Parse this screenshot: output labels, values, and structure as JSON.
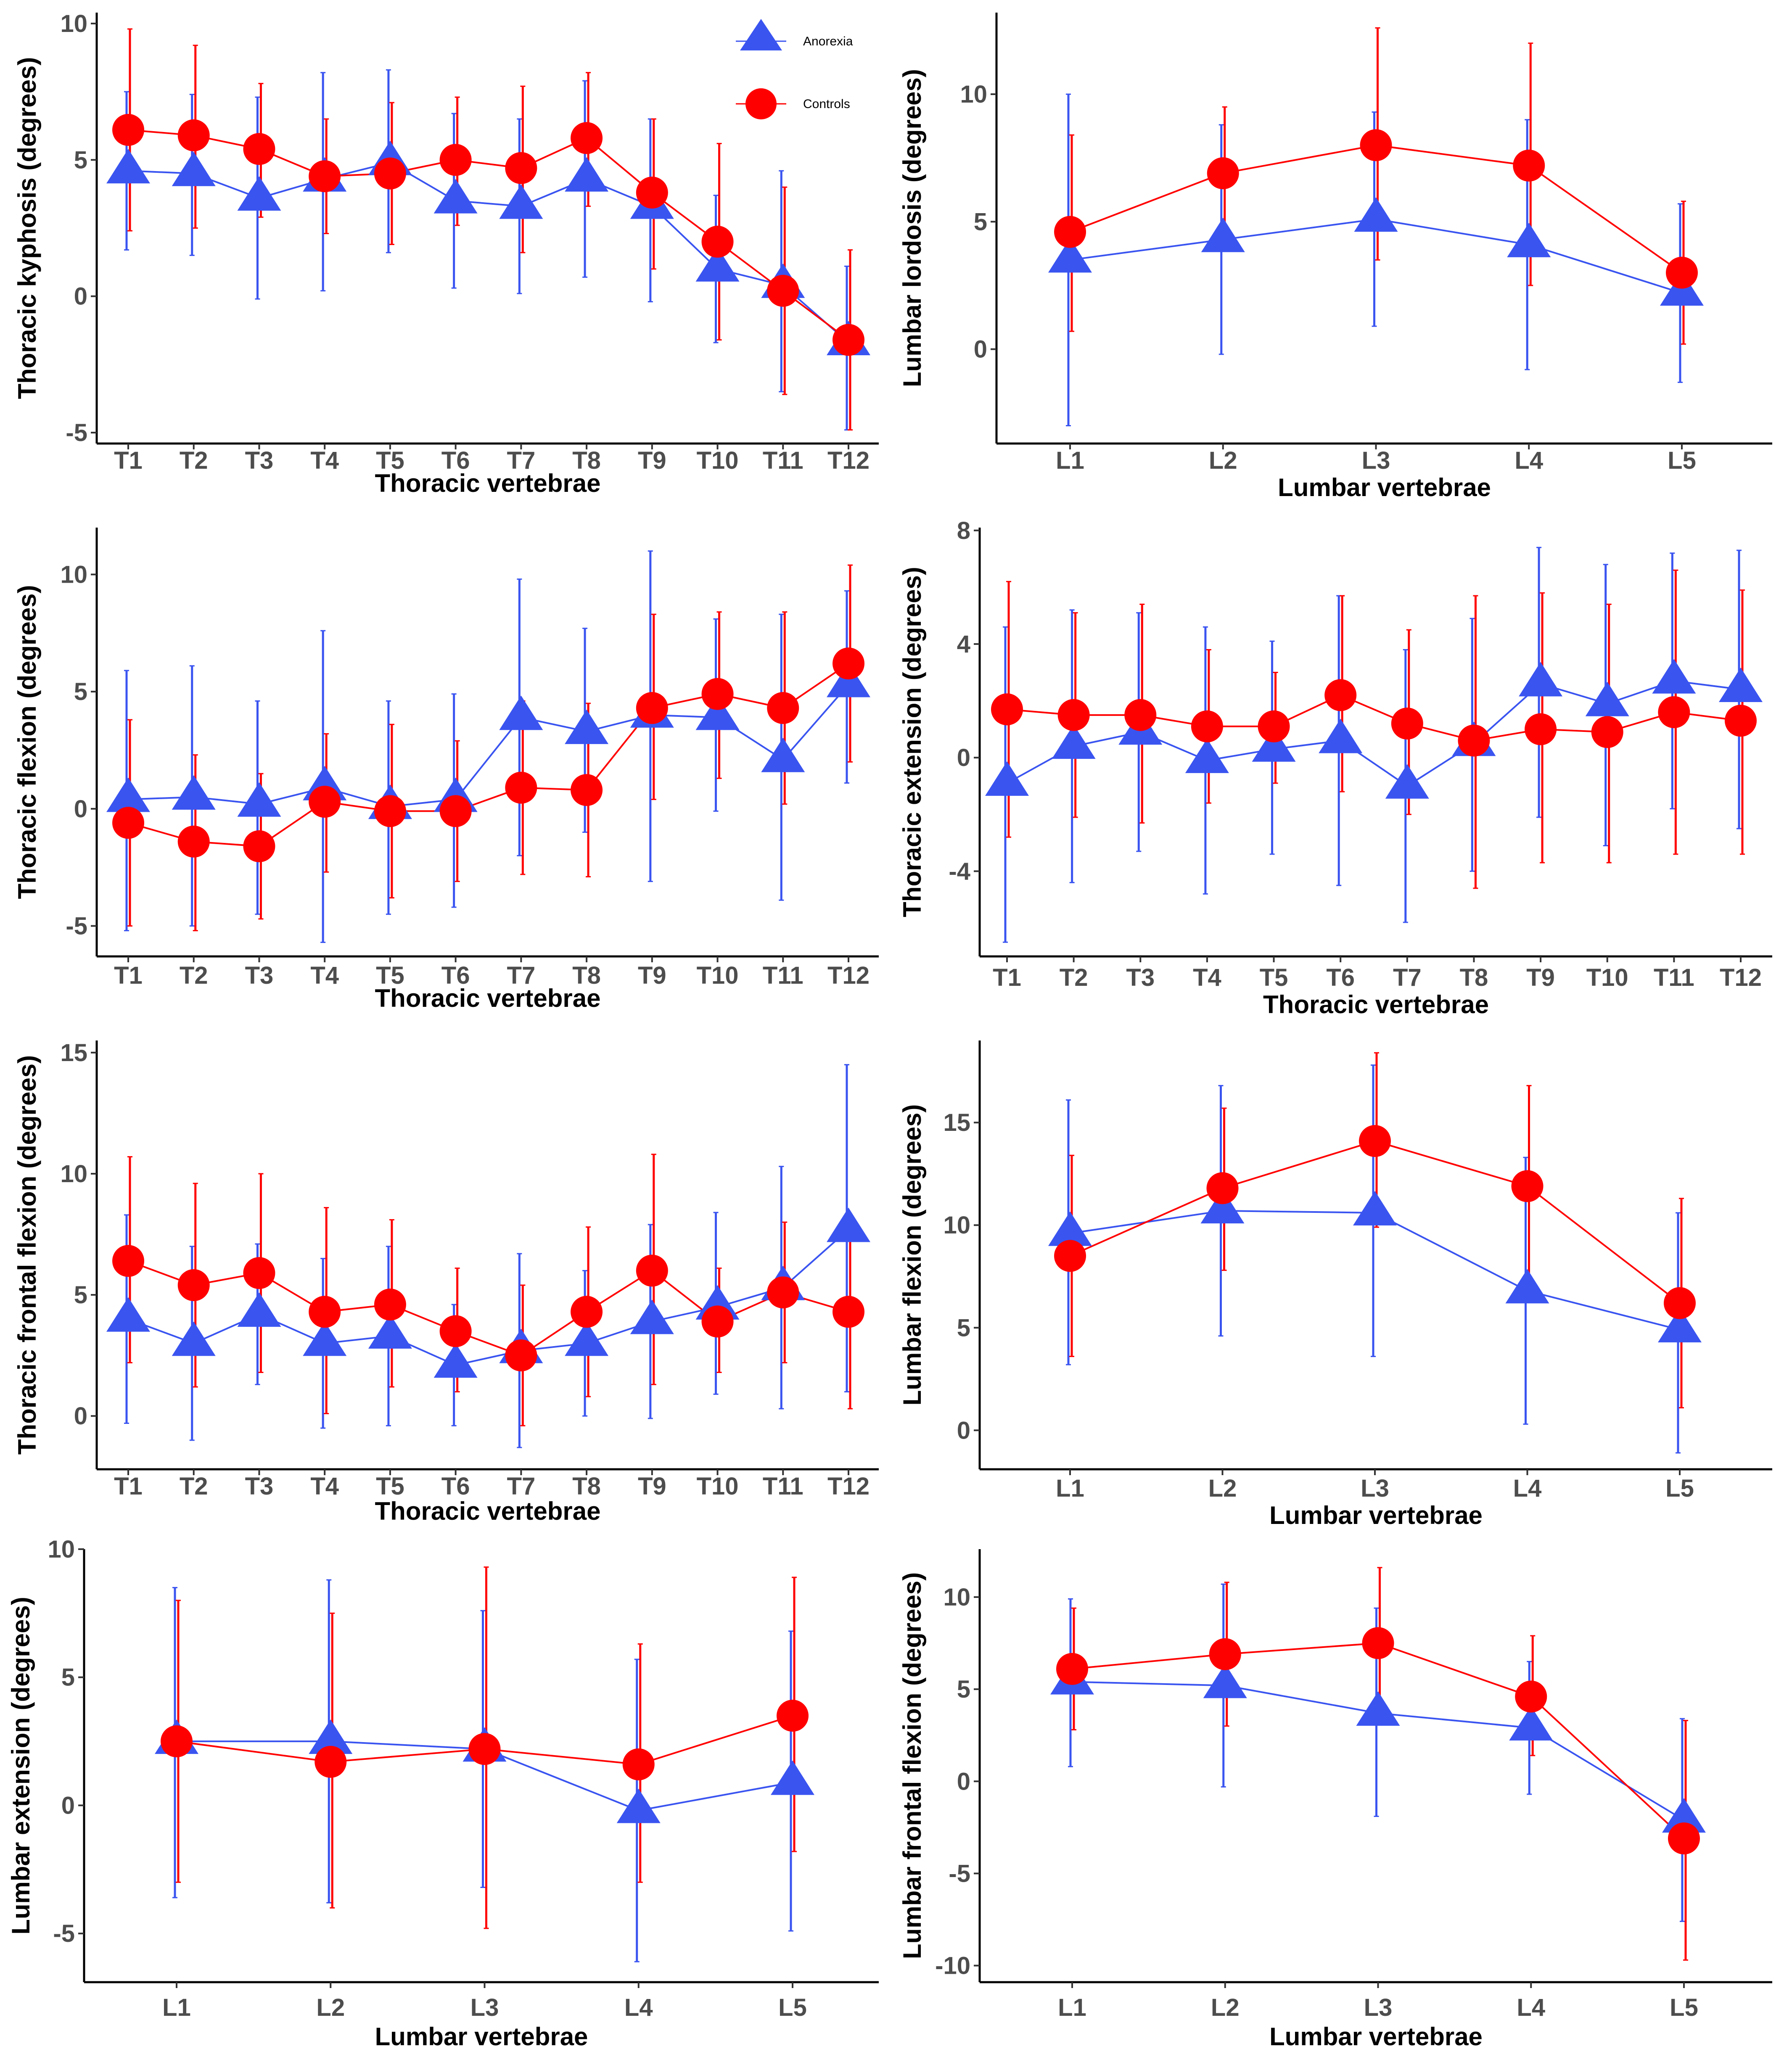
{
  "legend": {
    "items": [
      {
        "label": "Anorexia",
        "color": "#3a54f0",
        "shape": "triangle"
      },
      {
        "label": "Controls",
        "color": "#ff0000",
        "shape": "circle"
      }
    ]
  },
  "chart_data": [
    {
      "type": "line",
      "xlabel": "Thoracic vertebrae",
      "ylabel": "Thoracic kyphosis (degrees)",
      "ylim": [
        -5.4,
        10.4
      ],
      "yticks": [
        -5,
        0,
        5,
        10
      ],
      "ytick_labels": [
        "-5",
        "0",
        "5",
        "10"
      ],
      "categories": [
        "T1",
        "T2",
        "T3",
        "T4",
        "T5",
        "T6",
        "T7",
        "T8",
        "T9",
        "T10",
        "T11",
        "T12"
      ],
      "series": [
        {
          "name": "Anorexia",
          "values": [
            4.6,
            4.5,
            3.6,
            4.3,
            4.9,
            3.5,
            3.3,
            4.3,
            3.3,
            1.0,
            0.4,
            -1.7
          ],
          "lower": [
            1.7,
            1.5,
            -0.1,
            0.2,
            1.6,
            0.3,
            0.1,
            0.7,
            -0.2,
            -1.7,
            -3.5,
            -4.9
          ],
          "upper": [
            7.5,
            7.4,
            7.3,
            8.2,
            8.3,
            6.7,
            6.5,
            7.9,
            6.5,
            3.7,
            4.6,
            1.1
          ]
        },
        {
          "name": "Controls",
          "values": [
            6.1,
            5.9,
            5.4,
            4.4,
            4.5,
            5.0,
            4.7,
            5.8,
            3.8,
            2.0,
            0.2,
            -1.6
          ],
          "lower": [
            2.4,
            2.5,
            2.9,
            2.3,
            1.9,
            2.6,
            1.6,
            3.3,
            1.0,
            -1.6,
            -3.6,
            -4.9
          ],
          "upper": [
            9.8,
            9.2,
            7.8,
            6.5,
            7.1,
            7.3,
            7.7,
            8.2,
            6.5,
            5.6,
            4.0,
            1.7
          ]
        }
      ]
    },
    {
      "type": "line",
      "xlabel": "Lumbar vertebrae",
      "ylabel": "Lumbar lordosis (degrees)",
      "ylim": [
        -3.7,
        13.2
      ],
      "yticks": [
        0,
        5,
        10
      ],
      "ytick_labels": [
        "0",
        "5",
        "10"
      ],
      "categories": [
        "L1",
        "L2",
        "L3",
        "L4",
        "L5"
      ],
      "series": [
        {
          "name": "Anorexia",
          "values": [
            3.5,
            4.3,
            5.1,
            4.1,
            2.2
          ],
          "lower": [
            -3.0,
            -0.2,
            0.9,
            -0.8,
            -1.3
          ],
          "upper": [
            10.0,
            8.8,
            9.3,
            9.0,
            5.7
          ]
        },
        {
          "name": "Controls",
          "values": [
            4.6,
            6.9,
            8.0,
            7.2,
            3.0
          ],
          "lower": [
            0.7,
            4.2,
            3.5,
            2.5,
            0.2
          ],
          "upper": [
            8.4,
            9.5,
            12.6,
            12.0,
            5.8
          ]
        }
      ]
    },
    {
      "type": "line",
      "xlabel": "Thoracic vertebrae",
      "ylabel": "Thoracic flexion (degrees)",
      "ylim": [
        -6.3,
        12.0
      ],
      "yticks": [
        -5,
        0,
        5,
        10
      ],
      "ytick_labels": [
        "-5",
        "0",
        "5",
        "10"
      ],
      "categories": [
        "T1",
        "T2",
        "T3",
        "T4",
        "T5",
        "T6",
        "T7",
        "T8",
        "T9",
        "T10",
        "T11",
        "T12"
      ],
      "series": [
        {
          "name": "Anorexia",
          "values": [
            0.4,
            0.5,
            0.2,
            0.9,
            0.1,
            0.4,
            3.9,
            3.3,
            4.0,
            3.9,
            2.1,
            5.3
          ],
          "lower": [
            -5.2,
            -5.0,
            -4.5,
            -5.7,
            -4.5,
            -4.2,
            -2.0,
            -1.0,
            -3.1,
            -0.1,
            -3.9,
            1.1
          ],
          "upper": [
            5.9,
            6.1,
            4.6,
            7.6,
            4.6,
            4.9,
            9.8,
            7.7,
            11.0,
            8.1,
            8.3,
            9.3
          ]
        },
        {
          "name": "Controls",
          "values": [
            -0.6,
            -1.4,
            -1.6,
            0.3,
            -0.1,
            -0.1,
            0.9,
            0.8,
            4.3,
            4.9,
            4.3,
            6.2
          ],
          "lower": [
            -5.0,
            -5.2,
            -4.7,
            -2.7,
            -3.8,
            -3.1,
            -2.8,
            -2.9,
            0.4,
            1.3,
            0.2,
            2.0
          ],
          "upper": [
            3.8,
            2.3,
            1.5,
            3.2,
            3.6,
            2.9,
            4.6,
            4.5,
            8.3,
            8.4,
            8.4,
            10.4
          ]
        }
      ]
    },
    {
      "type": "line",
      "xlabel": "Thoracic vertebrae",
      "ylabel": "Thoracic extension (degrees)",
      "ylim": [
        -7.0,
        8.1
      ],
      "yticks": [
        -4,
        0,
        4,
        8
      ],
      "ytick_labels": [
        "-4",
        "0",
        "4",
        "8"
      ],
      "categories": [
        "T1",
        "T2",
        "T3",
        "T4",
        "T5",
        "T6",
        "T7",
        "T8",
        "T9",
        "T10",
        "T11",
        "T12"
      ],
      "series": [
        {
          "name": "Anorexia",
          "values": [
            -0.9,
            0.4,
            0.9,
            -0.1,
            0.3,
            0.6,
            -1.0,
            0.5,
            2.6,
            1.9,
            2.7,
            2.4
          ],
          "lower": [
            -6.5,
            -4.4,
            -3.3,
            -4.8,
            -3.4,
            -4.5,
            -5.8,
            -4.0,
            -2.1,
            -3.1,
            -1.8,
            -2.5
          ],
          "upper": [
            4.6,
            5.2,
            5.1,
            4.6,
            4.1,
            5.7,
            3.8,
            4.9,
            7.4,
            6.8,
            7.2,
            7.3
          ]
        },
        {
          "name": "Controls",
          "values": [
            1.7,
            1.5,
            1.5,
            1.1,
            1.1,
            2.2,
            1.2,
            0.6,
            1.0,
            0.9,
            1.6,
            1.3
          ],
          "lower": [
            -2.8,
            -2.1,
            -2.3,
            -1.6,
            -0.9,
            -1.2,
            -2.0,
            -4.6,
            -3.7,
            -3.7,
            -3.4,
            -3.4
          ],
          "upper": [
            6.2,
            5.1,
            5.4,
            3.8,
            3.0,
            5.7,
            4.5,
            5.7,
            5.8,
            5.4,
            6.6,
            5.9
          ]
        }
      ]
    },
    {
      "type": "line",
      "xlabel": "Thoracic vertebrae",
      "ylabel": "Thoracic frontal flexion (degrees)",
      "ylim": [
        -2.2,
        15.5
      ],
      "yticks": [
        0,
        5,
        10,
        15
      ],
      "ytick_labels": [
        "0",
        "5",
        "10",
        "15"
      ],
      "categories": [
        "T1",
        "T2",
        "T3",
        "T4",
        "T5",
        "T6",
        "T7",
        "T8",
        "T9",
        "T10",
        "T11",
        "T12"
      ],
      "series": [
        {
          "name": "Anorexia",
          "values": [
            4.0,
            3.0,
            4.2,
            3.0,
            3.3,
            2.1,
            2.7,
            3.0,
            3.9,
            4.5,
            5.3,
            7.7
          ],
          "lower": [
            -0.3,
            -1.0,
            1.3,
            -0.5,
            -0.4,
            -0.4,
            -1.3,
            0.0,
            -0.1,
            0.9,
            0.3,
            1.0
          ],
          "upper": [
            8.3,
            7.0,
            7.1,
            6.5,
            7.0,
            4.6,
            6.7,
            6.0,
            7.9,
            8.4,
            10.3,
            14.5
          ]
        },
        {
          "name": "Controls",
          "values": [
            6.4,
            5.4,
            5.9,
            4.3,
            4.6,
            3.5,
            2.5,
            4.3,
            6.0,
            3.9,
            5.1,
            4.3
          ],
          "lower": [
            2.2,
            1.2,
            1.8,
            0.1,
            1.2,
            1.0,
            -0.4,
            0.8,
            1.3,
            1.8,
            2.2,
            0.3
          ],
          "upper": [
            10.7,
            9.6,
            10.0,
            8.6,
            8.1,
            6.1,
            5.4,
            7.8,
            10.8,
            6.1,
            8.0,
            8.2
          ]
        }
      ]
    },
    {
      "type": "line",
      "xlabel": "Lumbar vertebrae",
      "ylabel": "Lumbar flexion (degrees)",
      "ylim": [
        -1.9,
        19.0
      ],
      "yticks": [
        0,
        5,
        10,
        15
      ],
      "ytick_labels": [
        "0",
        "5",
        "10",
        "15"
      ],
      "categories": [
        "L1",
        "L2",
        "L3",
        "L4",
        "L5"
      ],
      "series": [
        {
          "name": "Anorexia",
          "values": [
            9.6,
            10.7,
            10.6,
            6.8,
            4.9
          ],
          "lower": [
            3.2,
            4.6,
            3.6,
            0.3,
            -1.1
          ],
          "upper": [
            16.1,
            16.8,
            17.8,
            13.3,
            10.6
          ]
        },
        {
          "name": "Controls",
          "values": [
            8.5,
            11.8,
            14.1,
            11.9,
            6.2
          ],
          "lower": [
            3.6,
            7.8,
            9.9,
            7.3,
            1.1
          ],
          "upper": [
            13.4,
            15.7,
            18.4,
            16.8,
            11.3
          ]
        }
      ]
    },
    {
      "type": "line",
      "xlabel": "Lumbar vertebrae",
      "ylabel": "Lumbar extension (degrees)",
      "ylim": [
        -6.9,
        10.0
      ],
      "yticks": [
        -5,
        0,
        5,
        10
      ],
      "ytick_labels": [
        "-5",
        "0",
        "5",
        "10"
      ],
      "categories": [
        "L1",
        "L2",
        "L3",
        "L4",
        "L5"
      ],
      "series": [
        {
          "name": "Anorexia",
          "values": [
            2.5,
            2.5,
            2.2,
            -0.2,
            0.9
          ],
          "lower": [
            -3.6,
            -3.8,
            -3.2,
            -6.1,
            -4.9
          ],
          "upper": [
            8.5,
            8.8,
            7.6,
            5.7,
            6.8
          ]
        },
        {
          "name": "Controls",
          "values": [
            2.5,
            1.7,
            2.2,
            1.6,
            3.5
          ],
          "lower": [
            -3.0,
            -4.0,
            -4.8,
            -3.0,
            -1.8
          ],
          "upper": [
            8.0,
            7.5,
            9.3,
            6.3,
            8.9
          ]
        }
      ]
    },
    {
      "type": "line",
      "xlabel": "Lumbar vertebrae",
      "ylabel": "Lumbar frontal flexion (degrees)",
      "ylim": [
        -10.9,
        12.6
      ],
      "yticks": [
        -10,
        -5,
        0,
        5,
        10
      ],
      "ytick_labels": [
        "-10",
        "-5",
        "0",
        "5",
        "10"
      ],
      "categories": [
        "L1",
        "L2",
        "L3",
        "L4",
        "L5"
      ],
      "series": [
        {
          "name": "Anorexia",
          "values": [
            5.4,
            5.2,
            3.7,
            2.9,
            -2.1
          ],
          "lower": [
            0.8,
            -0.3,
            -1.9,
            -0.7,
            -7.6
          ],
          "upper": [
            9.9,
            10.7,
            9.4,
            6.5,
            3.4
          ]
        },
        {
          "name": "Controls",
          "values": [
            6.1,
            6.9,
            7.5,
            4.6,
            -3.1
          ],
          "lower": [
            2.8,
            3.0,
            3.4,
            1.4,
            -9.7
          ],
          "upper": [
            9.4,
            10.8,
            11.6,
            7.9,
            3.3
          ]
        }
      ]
    }
  ]
}
